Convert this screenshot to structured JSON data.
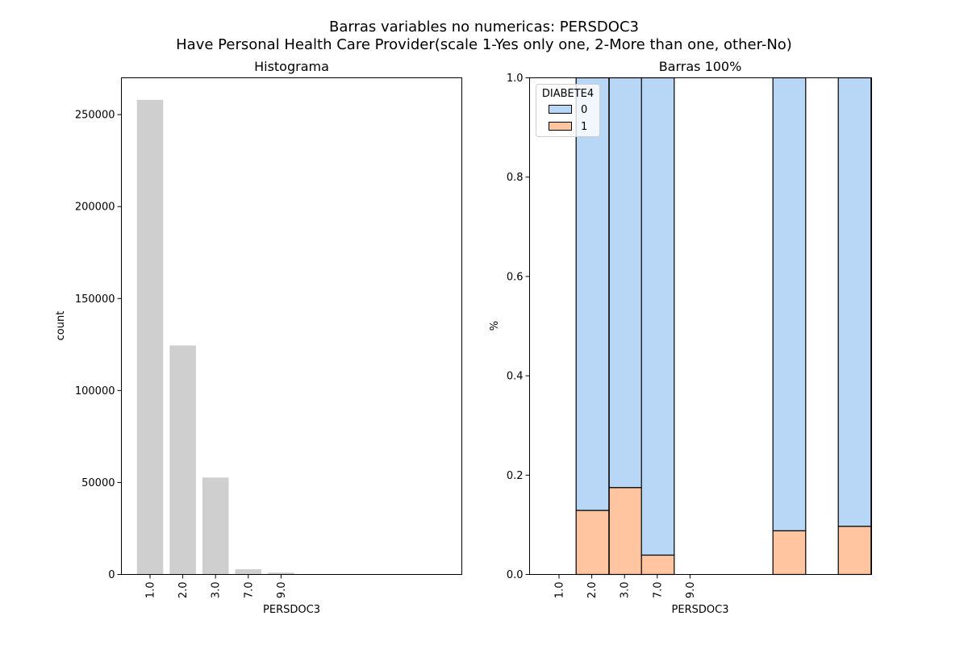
{
  "figure": {
    "title_line1": "Barras variables no numericas: PERSDOC3",
    "title_line2": "Have Personal Health Care Provider(scale 1-Yes only one, 2-More than one, other-No)"
  },
  "colors": {
    "hist_bar": "#cfcfcf",
    "class_0": "#b8d6f5",
    "class_1": "#ffc4a0",
    "edge": "#000000"
  },
  "chart_data": [
    {
      "type": "bar",
      "title": "Histograma",
      "xlabel": "PERSDOC3",
      "ylabel": "count",
      "categories": [
        "1.0",
        "2.0",
        "3.0",
        "7.0",
        "9.0"
      ],
      "values": [
        258000,
        124500,
        52700,
        2800,
        1000
      ],
      "ylim": [
        0,
        270000
      ],
      "yticks": [
        0,
        50000,
        100000,
        150000,
        200000,
        250000
      ],
      "grid": false
    },
    {
      "type": "bar",
      "stacked": true,
      "normalized": true,
      "title": "Barras 100%",
      "xlabel": "PERSDOC3",
      "ylabel": "%",
      "categories": [
        "1.0",
        "2.0",
        "3.0",
        "7.0",
        "9.0"
      ],
      "legend": {
        "title": "DIABETE4",
        "placement": "upper-left",
        "entries": [
          "0",
          "1"
        ]
      },
      "series": [
        {
          "name": "0",
          "values": [
            0.871,
            0.825,
            0.961,
            0.912,
            0.903
          ]
        },
        {
          "name": "1",
          "values": [
            0.129,
            0.175,
            0.039,
            0.088,
            0.097
          ]
        }
      ],
      "ylim": [
        0,
        1
      ],
      "yticks": [
        "0.0",
        "0.2",
        "0.4",
        "0.6",
        "0.8",
        "1.0"
      ],
      "grid": false
    }
  ]
}
